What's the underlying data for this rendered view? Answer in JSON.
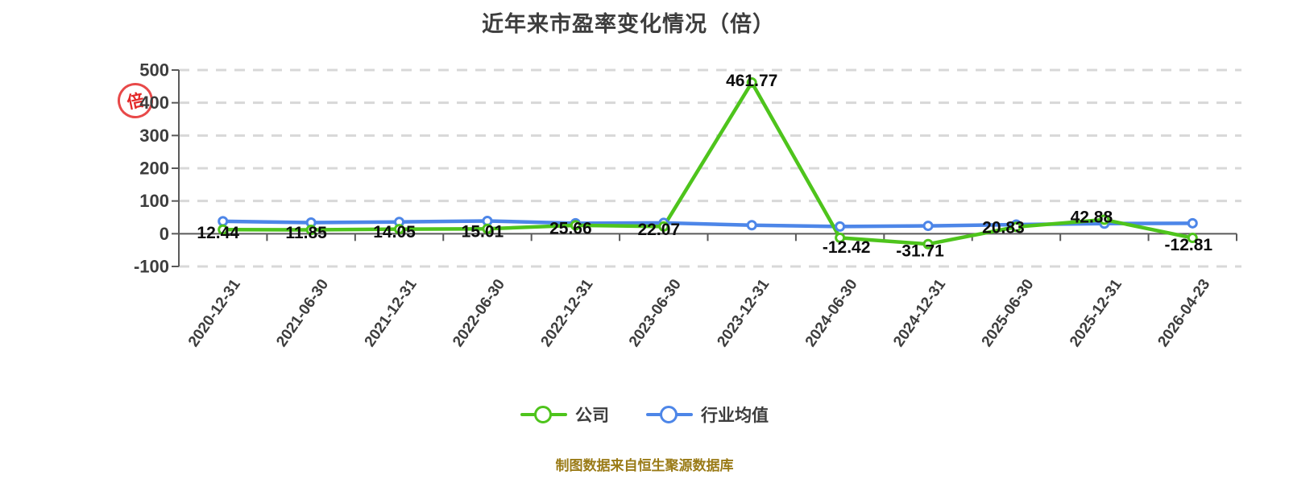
{
  "title": "近年来市盈率变化情况（倍）",
  "unit_stamp": "倍",
  "footer": "制图数据来自恒生聚源数据库",
  "colors": {
    "company_green": "#4ec41c",
    "industry_blue": "#4d86e8",
    "axis": "#5a5a5a",
    "grid": "#d8d8d8",
    "tick_text": "#3d3d3d",
    "data_label": "#0d0d0d",
    "footer_gold": "#9a7b17",
    "stamp_red": "#e11212"
  },
  "chart_data": {
    "type": "line",
    "title": "近年来市盈率变化情况（倍）",
    "categories": [
      "2020-12-31",
      "2021-06-30",
      "2021-12-31",
      "2022-06-30",
      "2022-12-31",
      "2023-06-30",
      "2023-12-31",
      "2024-06-30",
      "2024-12-31",
      "2025-06-30",
      "2025-12-31",
      "2026-04-23"
    ],
    "series": [
      {
        "name": "公司",
        "color": "#4ec41c",
        "values": [
          12.44,
          11.85,
          14.05,
          15.01,
          25.66,
          22.07,
          461.77,
          -12.42,
          -31.71,
          20.83,
          42.88,
          -12.81
        ],
        "labels_shown": true
      },
      {
        "name": "行业均值",
        "color": "#4d86e8",
        "values": [
          38,
          34,
          36,
          39,
          32,
          33,
          26,
          22,
          24,
          28,
          31,
          32
        ],
        "labels_shown": false
      }
    ],
    "yticks": [
      500,
      400,
      300,
      200,
      100,
      0,
      -100
    ],
    "ylim": [
      -100,
      500
    ],
    "xlabel": "",
    "ylabel": "倍",
    "grid": "horizontal-dashed",
    "x_label_rotation": -55,
    "legend_position": "bottom"
  }
}
